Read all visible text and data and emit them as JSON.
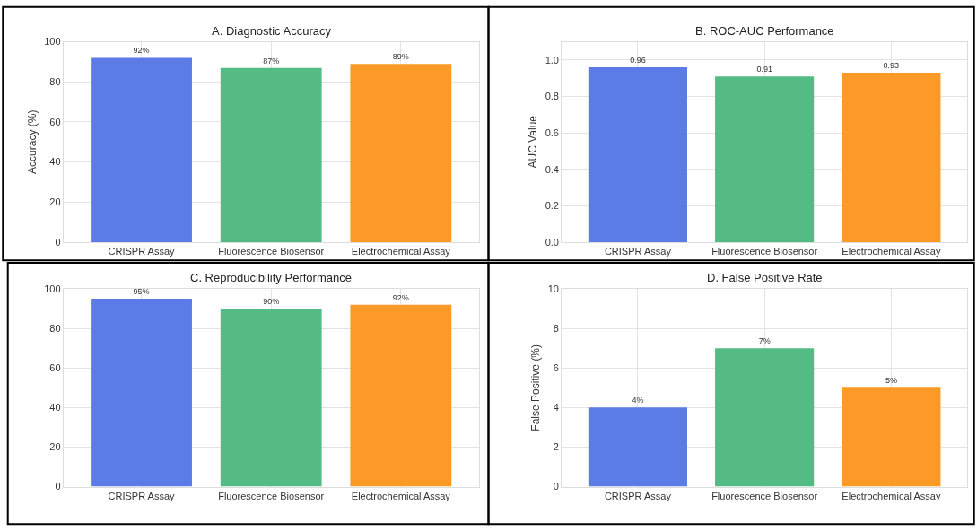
{
  "chart_data": [
    {
      "type": "bar",
      "title": "A. Diagnostic Accuracy",
      "ylabel": "Accuracy (%)",
      "categories": [
        "CRISPR Assay",
        "Fluorescence Biosensor",
        "Electrochemical Assay"
      ],
      "values": [
        92,
        87,
        89
      ],
      "colors": [
        "#5b7be6",
        "#55bb84",
        "#fb9a27"
      ],
      "value_labels": [
        "92%",
        "87%",
        "89%"
      ],
      "ylim": [
        0,
        100
      ],
      "yticks": [
        0,
        20,
        40,
        60,
        80,
        100
      ],
      "grid": true
    },
    {
      "type": "bar",
      "title": "B. ROC-AUC Performance",
      "ylabel": "AUC Value",
      "categories": [
        "CRISPR Assay",
        "Fluorescence Biosensor",
        "Electrochemical Assay"
      ],
      "values": [
        0.96,
        0.91,
        0.93
      ],
      "colors": [
        "#5b7be6",
        "#55bb84",
        "#fb9a27"
      ],
      "value_labels": [
        "0.96",
        "0.91",
        "0.93"
      ],
      "ylim": [
        0,
        1.1
      ],
      "yticks": [
        {
          "value": 0,
          "label": "0.0"
        },
        0.2,
        0.4,
        0.6,
        0.8,
        {
          "value": 1,
          "label": "1.0"
        }
      ],
      "grid": true
    },
    {
      "type": "bar",
      "title": "C. Reproducibility Performance",
      "categories": [
        "CRISPR Assay",
        "Fluorescence Biosensor",
        "Electrochemical Assay"
      ],
      "values": [
        95,
        90,
        92
      ],
      "colors": [
        "#5b7be6",
        "#55bb84",
        "#fb9a27"
      ],
      "value_labels": [
        "95%",
        "90%",
        "92%"
      ],
      "ylim": [
        0,
        100
      ],
      "yticks": [
        0,
        20,
        40,
        60,
        80,
        100
      ],
      "grid": true
    },
    {
      "type": "bar",
      "title": "D. False Positive Rate",
      "ylabel": "False Positive (%)",
      "categories": [
        "CRISPR Assay",
        "Fluorescence Biosensor",
        "Electrochemical Assay"
      ],
      "values": [
        4,
        7,
        5
      ],
      "colors": [
        "#5b7be6",
        "#55bb84",
        "#fb9a27"
      ],
      "value_labels": [
        "4%",
        "7%",
        "5%"
      ],
      "ylim": [
        0,
        10
      ],
      "yticks": [
        0,
        2,
        4,
        6,
        8,
        10
      ],
      "grid": true
    }
  ]
}
